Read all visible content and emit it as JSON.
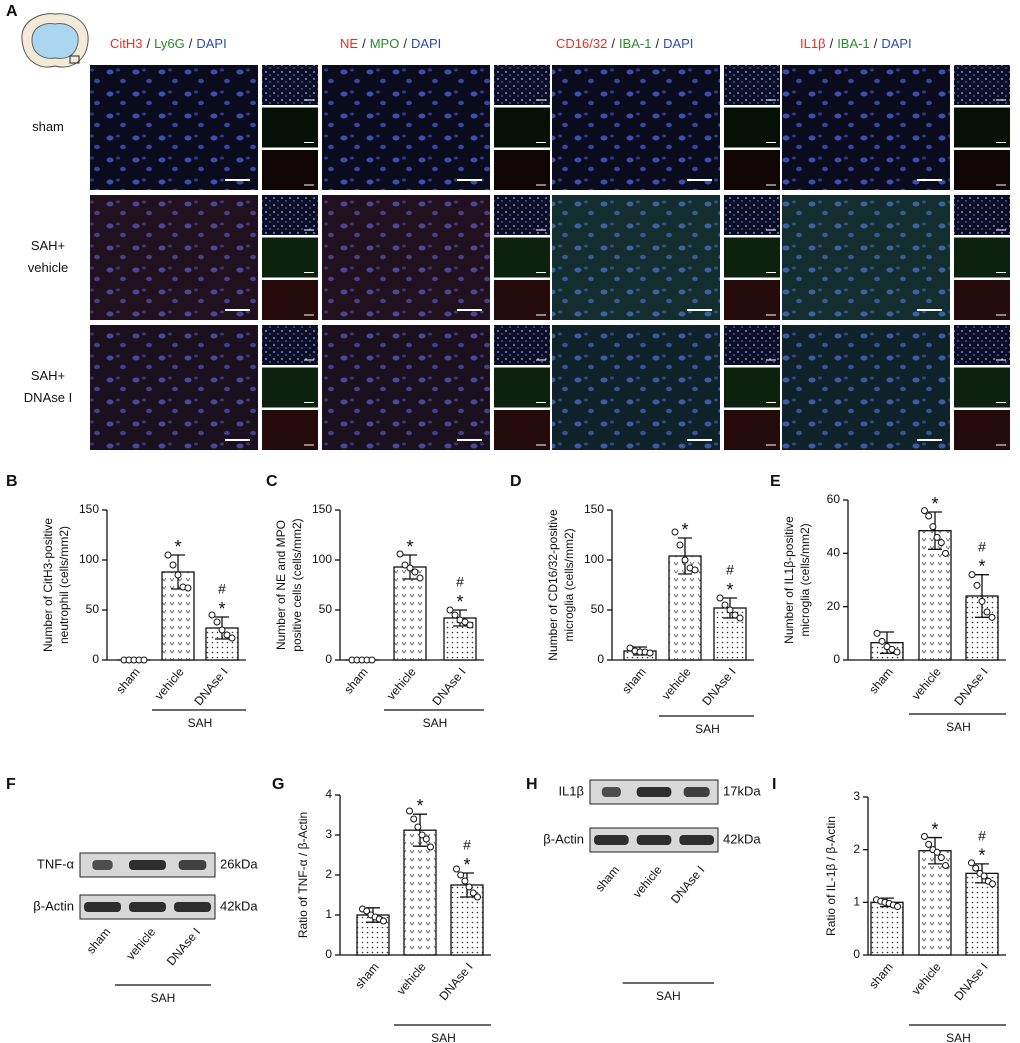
{
  "panel_a": {
    "panel": "A",
    "headers": [
      [
        "CitH3",
        "/",
        "Ly6G",
        "/",
        "DAPI"
      ],
      [
        "NE",
        "/",
        "MPO",
        "/",
        "DAPI"
      ],
      [
        "CD16/32",
        "/",
        "IBA-1",
        "/",
        "DAPI"
      ],
      [
        "IL1β",
        "/",
        "IBA-1",
        "/",
        "DAPI"
      ]
    ],
    "header_colors": [
      "#e0302a",
      "#222222",
      "#2a8a2a",
      "#222222",
      "#2a4ab0"
    ],
    "rows": [
      [
        "sham"
      ],
      [
        "SAH+",
        "vehicle"
      ],
      [
        "SAH+",
        "DNAse I"
      ]
    ]
  },
  "chart_data": [
    {
      "type": "bar",
      "panel": "B",
      "ylabel": [
        "Number of CitH3-positive",
        "neutrophil (cells/mm2)"
      ],
      "categories": [
        "sham",
        "vehicle",
        "DNAse I"
      ],
      "group_label": "SAH",
      "values": [
        0,
        88,
        32
      ],
      "errors": [
        0,
        17,
        11
      ],
      "points": [
        [
          0,
          0,
          0,
          0,
          0
        ],
        [
          105,
          95,
          85,
          73,
          72
        ],
        [
          45,
          38,
          30,
          25,
          22
        ]
      ],
      "annotations": [
        [],
        [
          "*"
        ],
        [
          "#",
          "*"
        ]
      ],
      "ylim": [
        0,
        150
      ],
      "yticks": [
        0,
        50,
        100,
        150
      ]
    },
    {
      "type": "bar",
      "panel": "C",
      "ylabel": [
        "Number of NE and MPO",
        "positive cells (cells/mm2)"
      ],
      "categories": [
        "sham",
        "vehicle",
        "DNAse I"
      ],
      "group_label": "SAH",
      "values": [
        0,
        93,
        42
      ],
      "errors": [
        0,
        12,
        8
      ],
      "points": [
        [
          0,
          0,
          0,
          0,
          0
        ],
        [
          106,
          95,
          92,
          88,
          82
        ],
        [
          50,
          45,
          40,
          38,
          35
        ]
      ],
      "annotations": [
        [],
        [
          "*"
        ],
        [
          "#",
          "*"
        ]
      ],
      "ylim": [
        0,
        150
      ],
      "yticks": [
        0,
        50,
        100,
        150
      ]
    },
    {
      "type": "bar",
      "panel": "D",
      "ylabel": [
        "Number of CD16/32-positive",
        "microglia (cells/mm2)"
      ],
      "categories": [
        "sham",
        "vehicle",
        "DNAse I"
      ],
      "group_label": "SAH",
      "values": [
        9,
        104,
        52
      ],
      "errors": [
        4,
        18,
        10
      ],
      "points": [
        [
          12,
          9,
          8,
          8,
          7
        ],
        [
          128,
          115,
          100,
          92,
          90
        ],
        [
          62,
          55,
          50,
          45,
          42
        ]
      ],
      "annotations": [
        [],
        [
          "*"
        ],
        [
          "#",
          "*"
        ]
      ],
      "ylim": [
        0,
        150
      ],
      "yticks": [
        0,
        50,
        100,
        150
      ]
    },
    {
      "type": "bar",
      "panel": "E",
      "ylabel": [
        "Number of IL1β-positive",
        "microglia (cells/mm2)"
      ],
      "categories": [
        "sham",
        "vehicle",
        "DNAse I"
      ],
      "group_label": "SAH",
      "values": [
        6.5,
        48.5,
        24
      ],
      "errors": [
        4,
        7,
        8
      ],
      "points": [
        [
          10,
          7,
          5,
          4,
          3
        ],
        [
          56,
          54,
          50,
          46,
          44,
          40
        ],
        [
          32,
          28,
          22,
          18,
          16
        ]
      ],
      "annotations": [
        [],
        [
          "*"
        ],
        [
          "#",
          "*"
        ]
      ],
      "ylim": [
        0,
        60
      ],
      "yticks": [
        0,
        20,
        40,
        60
      ]
    },
    {
      "type": "bar",
      "panel": "G",
      "ylabel": [
        "Ratio of TNF-α / β-Actin"
      ],
      "categories": [
        "sham",
        "vehicle",
        "DNAse I"
      ],
      "group_label": "SAH",
      "values": [
        1.0,
        3.12,
        1.75
      ],
      "errors": [
        0.18,
        0.4,
        0.3
      ],
      "points": [
        [
          1.15,
          1.1,
          1.0,
          0.95,
          0.9,
          0.85
        ],
        [
          3.6,
          3.4,
          3.2,
          3.0,
          2.9,
          2.7
        ],
        [
          2.15,
          2.0,
          1.85,
          1.7,
          1.55,
          1.45
        ]
      ],
      "annotations": [
        [],
        [
          "*"
        ],
        [
          "#",
          "*"
        ]
      ],
      "ylim": [
        0,
        4
      ],
      "yticks": [
        0,
        1,
        2,
        3,
        4
      ]
    },
    {
      "type": "bar",
      "panel": "I",
      "ylabel": [
        "Ratio of IL-1β / β-Actin"
      ],
      "categories": [
        "sham",
        "vehicle",
        "DNAse I"
      ],
      "group_label": "SAH",
      "values": [
        1.0,
        1.98,
        1.55
      ],
      "errors": [
        0.08,
        0.25,
        0.18
      ],
      "points": [
        [
          1.05,
          1.02,
          1.0,
          0.98,
          0.95,
          0.92
        ],
        [
          2.25,
          2.1,
          2.0,
          1.95,
          1.85,
          1.7
        ],
        [
          1.75,
          1.65,
          1.55,
          1.5,
          1.4,
          1.35
        ]
      ],
      "annotations": [
        [],
        [
          "*"
        ],
        [
          "#",
          "*"
        ]
      ],
      "ylim": [
        0,
        3
      ],
      "yticks": [
        0,
        1,
        2,
        3
      ]
    }
  ],
  "blots": [
    {
      "panel": "F",
      "proteins": [
        "TNF-α",
        "β-Actin"
      ],
      "sizes": [
        "26kDa",
        "42kDa"
      ],
      "lanes": [
        "sham",
        "vehicle",
        "DNAse I"
      ],
      "group_label": "SAH"
    },
    {
      "panel": "H",
      "proteins": [
        "IL1β",
        "β-Actin"
      ],
      "sizes": [
        "17kDa",
        "42kDa"
      ],
      "lanes": [
        "sham",
        "vehicle",
        "DNAse I"
      ],
      "group_label": "SAH"
    }
  ]
}
